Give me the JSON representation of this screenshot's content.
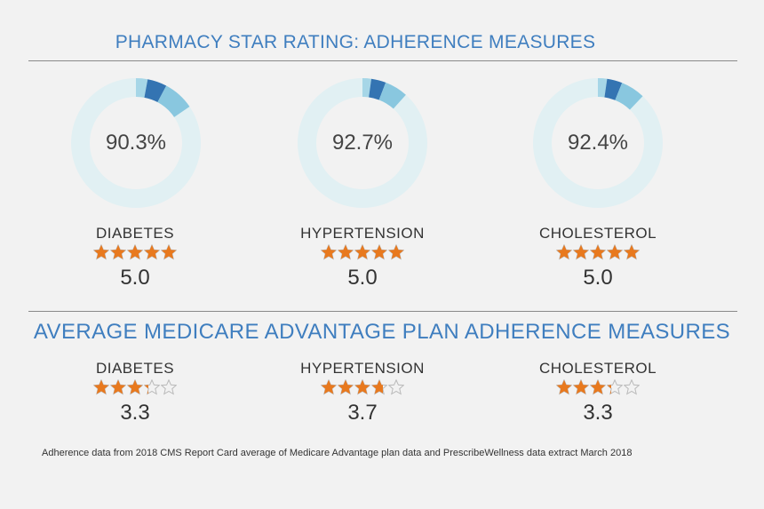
{
  "header": {
    "title": "PHARMACY STAR RATING: ADHERENCE MEASURES"
  },
  "section2": {
    "title": "AVERAGE MEDICARE ADVANTAGE PLAN ADHERENCE MEASURES"
  },
  "colors": {
    "track": "#e1f0f3",
    "dark_blue": "#3474b2",
    "light_blue": "#89c7df",
    "pale_blue": "#a6d6e7",
    "star": "#e8791e",
    "star_empty": "#b9b9b9"
  },
  "chart_data": [
    {
      "type": "pie",
      "title": "PHARMACY STAR RATING: ADHERENCE MEASURES",
      "series": [
        {
          "name": "DIABETES",
          "percent_label": "90.3%",
          "value": 90.3,
          "rating": 5.0,
          "rating_label": "5.0"
        },
        {
          "name": "HYPERTENSION",
          "percent_label": "92.7%",
          "value": 92.7,
          "rating": 5.0,
          "rating_label": "5.0"
        },
        {
          "name": "CHOLESTEROL",
          "percent_label": "92.4%",
          "value": 92.4,
          "rating": 5.0,
          "rating_label": "5.0"
        }
      ]
    },
    {
      "type": "bar",
      "title": "AVERAGE MEDICARE ADVANTAGE PLAN ADHERENCE MEASURES",
      "categories": [
        "DIABETES",
        "HYPERTENSION",
        "CHOLESTEROL"
      ],
      "values": [
        3.3,
        3.7,
        3.3
      ],
      "value_labels": [
        "3.3",
        "3.7",
        "3.3"
      ],
      "ylim": [
        0,
        5
      ]
    }
  ],
  "footnote": "Adherence data from 2018 CMS Report Card average of Medicare Advantage plan data and PrescribeWellness data extract March 2018"
}
